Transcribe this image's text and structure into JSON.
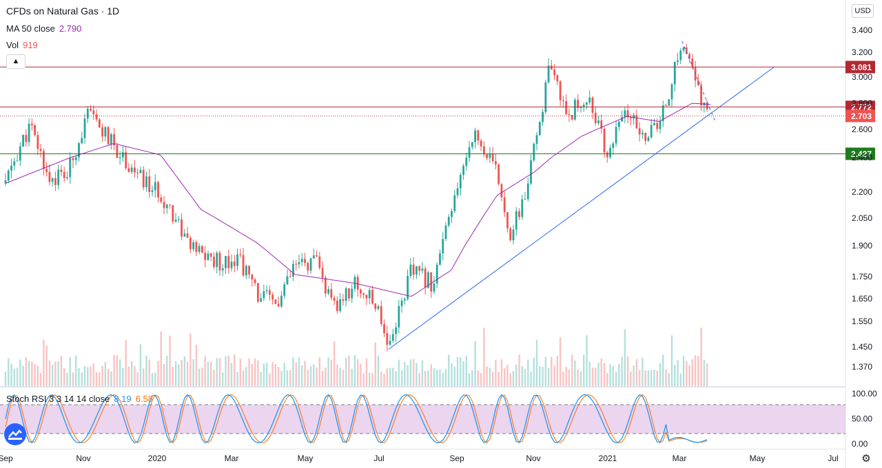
{
  "legend": {
    "title": "CFDs on Natural Gas · 1D",
    "ma_label": "MA 50 close",
    "ma_value": "2.790",
    "vol_label": "Vol",
    "vol_value": "919",
    "stoch_label": "Stoch RSI 3 3 14 14 close",
    "stoch_k": "8.19",
    "stoch_d": "6.58"
  },
  "controls": {
    "collapse_icon": "chevron-up-icon",
    "currency_label": "USD",
    "settings_icon": "gear-icon",
    "logo_icon": "tradingview-logo-icon"
  },
  "colors": {
    "up": "#26a69a",
    "down": "#ef5350",
    "ma": "#9c27b0",
    "trendline": "#2962ff",
    "resistance": "#b22833",
    "support": "#1e7b1e",
    "stoch_k": "#2196f3",
    "stoch_d": "#ff6d00",
    "stoch_band": "#e1bee7"
  },
  "chart_data": [
    {
      "type": "candlestick",
      "title": "CFDs on Natural Gas · 1D",
      "currency": "USD",
      "y_ticks": [
        "3.400",
        "3.200",
        "3.000",
        "2.800",
        "2.600",
        "2.400",
        "2.200",
        "2.050",
        "1.900",
        "1.750",
        "1.650",
        "1.550",
        "1.450",
        "1.370"
      ],
      "x_ticks": [
        "Sep",
        "Nov",
        "2020",
        "Mar",
        "May",
        "Jul",
        "Sep",
        "Nov",
        "2021",
        "Mar",
        "May",
        "Jul"
      ],
      "close_path": [
        [
          "2019-09-01",
          2.25
        ],
        [
          "2019-09-20",
          2.62
        ],
        [
          "2019-10-05",
          2.28
        ],
        [
          "2019-10-20",
          2.3
        ],
        [
          "2019-11-05",
          2.72
        ],
        [
          "2019-11-25",
          2.48
        ],
        [
          "2019-12-15",
          2.28
        ],
        [
          "2020-01-05",
          2.15
        ],
        [
          "2020-01-25",
          1.88
        ],
        [
          "2020-02-15",
          1.82
        ],
        [
          "2020-03-01",
          1.85
        ],
        [
          "2020-03-15",
          1.68
        ],
        [
          "2020-04-01",
          1.62
        ],
        [
          "2020-04-15",
          1.8
        ],
        [
          "2020-05-01",
          1.82
        ],
        [
          "2020-05-15",
          1.6
        ],
        [
          "2020-06-01",
          1.72
        ],
        [
          "2020-06-20",
          1.6
        ],
        [
          "2020-06-27",
          1.45
        ],
        [
          "2020-07-15",
          1.78
        ],
        [
          "2020-08-01",
          1.72
        ],
        [
          "2020-08-20",
          2.2
        ],
        [
          "2020-09-01",
          2.58
        ],
        [
          "2020-09-20",
          2.3
        ],
        [
          "2020-10-01",
          1.95
        ],
        [
          "2020-10-15",
          2.25
        ],
        [
          "2020-10-31",
          3.05
        ],
        [
          "2020-11-15",
          2.72
        ],
        [
          "2020-12-01",
          2.85
        ],
        [
          "2020-12-15",
          2.42
        ],
        [
          "2020-12-31",
          2.75
        ],
        [
          "2021-01-10",
          2.55
        ],
        [
          "2021-01-25",
          2.62
        ],
        [
          "2021-02-05",
          3.0
        ],
        [
          "2021-02-12",
          3.3
        ],
        [
          "2021-02-25",
          2.88
        ],
        [
          "2021-03-05",
          2.7
        ]
      ],
      "ma50_path": [
        [
          "2019-09-01",
          2.25
        ],
        [
          "2019-10-15",
          2.38
        ],
        [
          "2019-11-25",
          2.5
        ],
        [
          "2019-12-31",
          2.42
        ],
        [
          "2020-02-01",
          2.1
        ],
        [
          "2020-03-15",
          1.92
        ],
        [
          "2020-04-15",
          1.76
        ],
        [
          "2020-06-01",
          1.72
        ],
        [
          "2020-07-15",
          1.66
        ],
        [
          "2020-08-15",
          1.78
        ],
        [
          "2020-09-20",
          2.18
        ],
        [
          "2020-10-20",
          2.32
        ],
        [
          "2020-11-25",
          2.55
        ],
        [
          "2020-12-31",
          2.7
        ],
        [
          "2021-01-25",
          2.66
        ],
        [
          "2021-02-20",
          2.8
        ],
        [
          "2021-03-07",
          2.79
        ]
      ],
      "series": [
        {
          "name": "MA 50 close",
          "last": 2.79
        },
        {
          "name": "Vol",
          "last": 919
        }
      ],
      "horizontal_lines": [
        {
          "value": "3.081",
          "style": "solid",
          "color": "#b22833"
        },
        {
          "value": "2.772",
          "style": "solid",
          "color": "#b22833"
        },
        {
          "value": "2.703",
          "style": "dotted",
          "color": "#b22833"
        },
        {
          "value": "2.427",
          "style": "solid",
          "color": "#1e7b1e"
        }
      ],
      "trendlines": [
        {
          "from": [
            "2020-06-27",
            1.44
          ],
          "to": [
            "2021-04-25",
            3.08
          ],
          "style": "solid"
        },
        {
          "from": [
            "2021-02-12",
            3.3
          ],
          "to": [
            "2021-03-10",
            2.66
          ],
          "style": "dashed"
        }
      ]
    },
    {
      "type": "line",
      "title": "Stoch RSI 3 3 14 14 close",
      "y_ticks": [
        "100.00",
        "50.00",
        "0.00"
      ],
      "band": [
        20,
        80
      ],
      "series": [
        {
          "name": "K",
          "last": 8.19
        },
        {
          "name": "D",
          "last": 6.58
        }
      ]
    }
  ]
}
